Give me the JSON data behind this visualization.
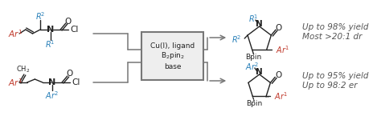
{
  "bg_color": "#ffffff",
  "text_color_black": "#1a1a1a",
  "text_color_red": "#c0392b",
  "text_color_blue": "#2980b9",
  "text_color_gray": "#555555",
  "box_text": [
    "Cu(I), ligand",
    "B₂pin₂",
    "base"
  ],
  "top_result_text": [
    "Up to 98% yield",
    "Most >20:1 dr"
  ],
  "bot_result_text": [
    "Up to 95% yield",
    "Up to 98:2 er"
  ],
  "figsize": [
    4.74,
    1.45
  ],
  "dpi": 100
}
